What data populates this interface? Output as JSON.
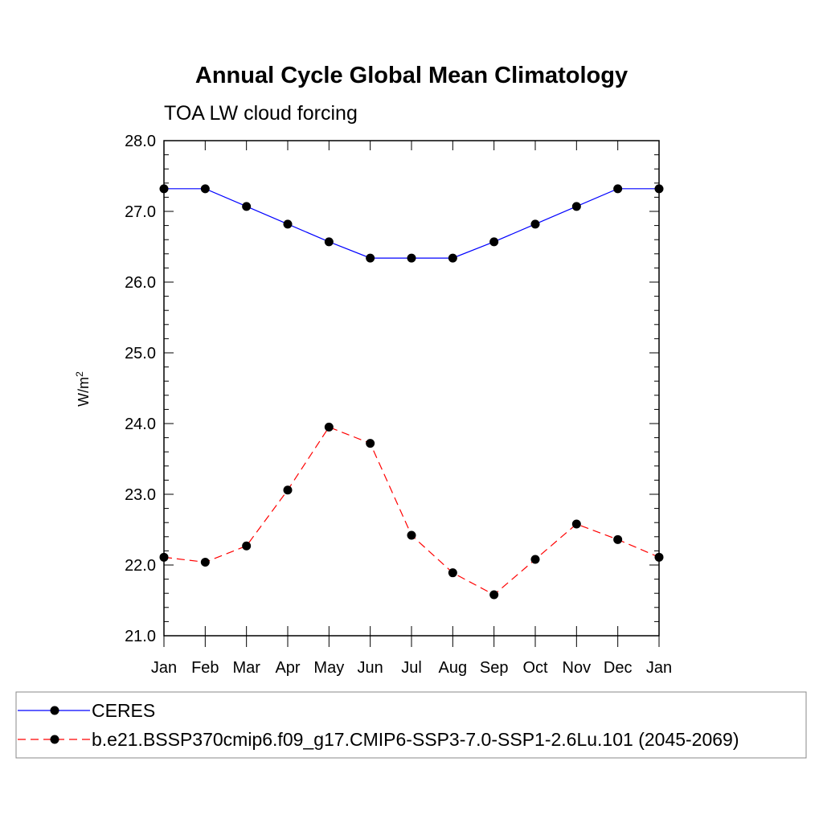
{
  "chart_data": {
    "type": "line",
    "title": "Annual Cycle Global Mean Climatology",
    "subtitle": "TOA LW cloud forcing",
    "ylabel": "W/m",
    "ylabel_superscript": "2",
    "xlabel": "",
    "categories": [
      "Jan",
      "Feb",
      "Mar",
      "Apr",
      "May",
      "Jun",
      "Jul",
      "Aug",
      "Sep",
      "Oct",
      "Nov",
      "Dec",
      "Jan"
    ],
    "ylim": [
      21.0,
      28.0
    ],
    "y_ticks": [
      "21.0",
      "22.0",
      "23.0",
      "24.0",
      "25.0",
      "26.0",
      "27.0",
      "28.0"
    ],
    "grid": false,
    "legend_position": "bottom",
    "series": [
      {
        "name": "CERES",
        "color": "#0000ff",
        "line_style": "solid",
        "marker": "filled-circle",
        "values": [
          27.32,
          27.32,
          27.07,
          26.82,
          26.57,
          26.34,
          26.34,
          26.34,
          26.57,
          26.82,
          27.07,
          27.32,
          27.32
        ]
      },
      {
        "name": "b.e21.BSSP370cmip6.f09_g17.CMIP6-SSP3-7.0-SSP1-2.6Lu.101 (2045-2069)",
        "color": "#ff0000",
        "line_style": "dashed",
        "marker": "filled-circle",
        "values": [
          22.11,
          22.04,
          22.27,
          23.06,
          23.95,
          23.72,
          22.42,
          21.89,
          21.58,
          22.08,
          22.58,
          22.36,
          22.11
        ]
      }
    ]
  }
}
